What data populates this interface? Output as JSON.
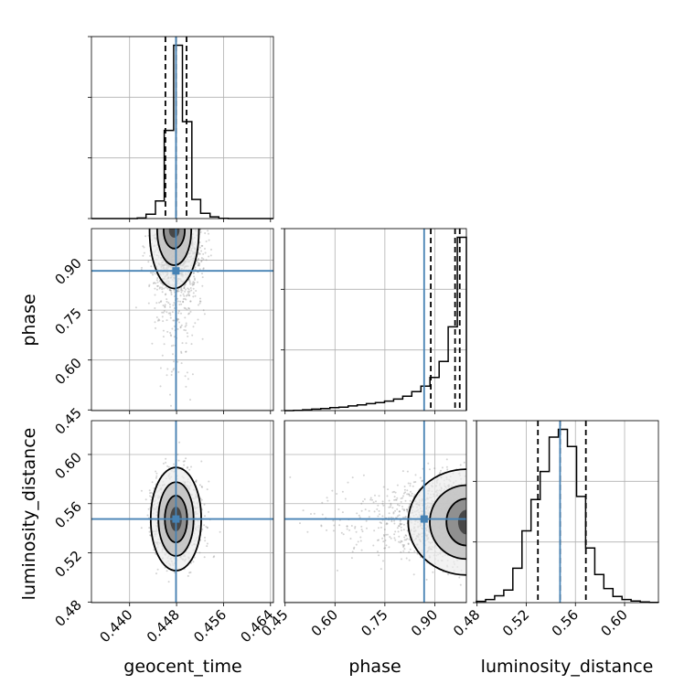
{
  "chart_data": {
    "type": "corner",
    "parameters": [
      "geocent_time",
      "phase",
      "luminosity_distance"
    ],
    "truths": {
      "geocent_time": 0.4479,
      "phase": 0.868,
      "luminosity_distance": 0.5475
    },
    "quantiles": {
      "geocent_time": [
        0.4461,
        0.4479,
        0.4497
      ],
      "phase": [
        0.888,
        0.961,
        0.975
      ],
      "luminosity_distance": [
        0.5295,
        0.5475,
        0.5685
      ]
    },
    "ranges": {
      "geocent_time": [
        0.4335,
        0.4645
      ],
      "phase": [
        0.448,
        0.995
      ],
      "luminosity_distance": [
        0.4795,
        0.6275
      ]
    },
    "ticks": {
      "geocent_time": [
        0.44,
        0.448,
        0.456,
        0.464
      ],
      "phase": [
        0.45,
        0.6,
        0.75,
        0.9
      ],
      "luminosity_distance": [
        0.48,
        0.52,
        0.56,
        0.6
      ]
    },
    "tick_labels": {
      "geocent_time": [
        "0.440",
        "0.448",
        "0.456",
        "0.464"
      ],
      "phase": [
        "0.45",
        "0.60",
        "0.75",
        "0.90"
      ],
      "luminosity_distance": [
        "0.48",
        "0.52",
        "0.56",
        "0.60"
      ]
    },
    "histograms": {
      "geocent_time": {
        "bin_edges": [
          0.4335,
          0.4351,
          0.4366,
          0.4382,
          0.4397,
          0.4413,
          0.4428,
          0.4444,
          0.4459,
          0.4475,
          0.449,
          0.4506,
          0.4521,
          0.4537,
          0.4552,
          0.4568,
          0.4583,
          0.4599,
          0.4614,
          0.463,
          0.4645
        ],
        "counts": [
          0,
          0,
          0,
          0,
          0,
          2,
          15,
          60,
          300,
          590,
          330,
          65,
          18,
          6,
          1,
          0,
          0,
          0,
          0,
          0
        ]
      },
      "phase": {
        "bin_edges": [
          0.448,
          0.4754,
          0.5027,
          0.5301,
          0.5574,
          0.5848,
          0.6121,
          0.6395,
          0.6668,
          0.6942,
          0.7215,
          0.7489,
          0.7762,
          0.8036,
          0.8309,
          0.8583,
          0.8856,
          0.913,
          0.9403,
          0.9677,
          0.995
        ],
        "counts": [
          0,
          1,
          3,
          5,
          7,
          10,
          12,
          16,
          20,
          24,
          28,
          33,
          40,
          50,
          66,
          85,
          115,
          170,
          290,
          600
        ]
      },
      "luminosity_distance": {
        "bin_edges": [
          0.4795,
          0.4869,
          0.4943,
          0.5017,
          0.5091,
          0.5165,
          0.5239,
          0.5313,
          0.5387,
          0.5461,
          0.5535,
          0.5609,
          0.5683,
          0.5757,
          0.5831,
          0.5905,
          0.5979,
          0.6053,
          0.6127,
          0.6201,
          0.6275
        ],
        "counts": [
          4,
          10,
          22,
          40,
          110,
          230,
          330,
          420,
          530,
          555,
          500,
          340,
          175,
          90,
          45,
          20,
          10,
          5,
          2,
          1
        ]
      }
    },
    "grid": true,
    "truth_color": "#4682b4",
    "hist_color": "#000000",
    "scatter_color": "#808080",
    "contour_color": "#000000",
    "xlabels": [
      "geocent_time",
      "phase",
      "luminosity_distance"
    ],
    "ylabels": [
      "phase",
      "luminosity_distance"
    ]
  }
}
